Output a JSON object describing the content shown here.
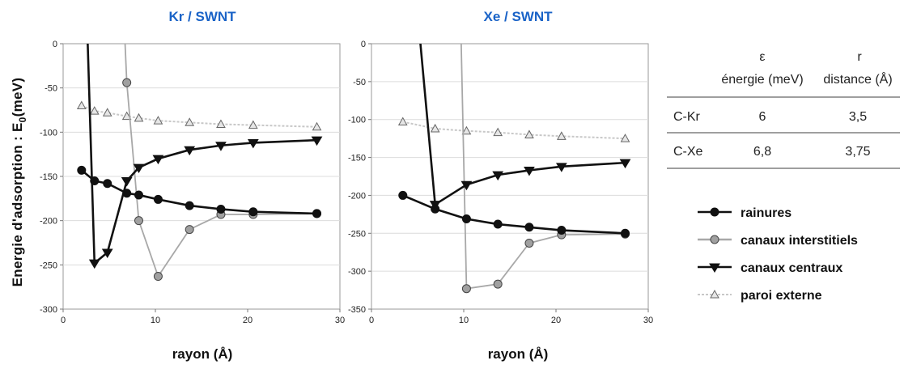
{
  "y_axis_label": "Energie d'adsorption : E",
  "y_axis_label_sub": "0",
  "y_axis_label_unit": "(meV)",
  "chart_data": [
    {
      "type": "line",
      "title": "Kr / SWNT",
      "xlabel": "rayon (Å)",
      "xlim": [
        0,
        30
      ],
      "ylim": [
        -300,
        0
      ],
      "xticks": [
        0,
        10,
        20,
        30
      ],
      "yticks": [
        0,
        -50,
        -100,
        -150,
        -200,
        -250,
        -300
      ],
      "series": [
        {
          "name": "rainures",
          "color": "#111111",
          "marker": "circle-filled",
          "line": "#111111",
          "x": [
            2.0,
            3.4,
            4.8,
            6.9,
            8.2,
            10.3,
            13.7,
            17.1,
            20.6,
            27.5
          ],
          "y": [
            -143,
            -155,
            -158,
            -169,
            -171,
            -176,
            -183,
            -187,
            -190,
            -192
          ]
        },
        {
          "name": "canaux interstitiels",
          "color": "#9a9a9a",
          "marker": "circle-gray",
          "line": "#a8a8a8",
          "x": [
            6.9,
            8.2,
            10.3,
            13.7,
            17.1,
            20.6,
            27.5
          ],
          "y": [
            -44,
            -200,
            -263,
            -210,
            -193,
            -193,
            -192
          ]
        },
        {
          "name": "canaux centraux",
          "color": "#111111",
          "marker": "triangle-down",
          "line": "#111111",
          "x": [
            3.4,
            4.8,
            6.9,
            8.2,
            10.3,
            13.7,
            17.1,
            20.6,
            27.5
          ],
          "y": [
            -248,
            -236,
            -155,
            -140,
            -130,
            -120,
            -115,
            -112,
            -109
          ]
        },
        {
          "name": "paroi externe",
          "color": "#888888",
          "marker": "triangle-up",
          "line": "#c8c8c8",
          "x": [
            2.0,
            3.4,
            4.8,
            6.9,
            8.2,
            10.3,
            13.7,
            17.1,
            20.6,
            27.5
          ],
          "y": [
            -70,
            -76,
            -78,
            -82,
            -84,
            -87,
            -89,
            -91,
            -92,
            -94
          ]
        }
      ]
    },
    {
      "type": "line",
      "title": "Xe / SWNT",
      "xlabel": "rayon (Å)",
      "xlim": [
        0,
        30
      ],
      "ylim": [
        -350,
        0
      ],
      "xticks": [
        0,
        10,
        20,
        30
      ],
      "yticks": [
        0,
        -50,
        -100,
        -150,
        -200,
        -250,
        -300,
        -350
      ],
      "series": [
        {
          "name": "rainures",
          "color": "#111111",
          "marker": "circle-filled",
          "line": "#111111",
          "x": [
            3.4,
            6.9,
            10.3,
            13.7,
            17.1,
            20.6,
            27.5
          ],
          "y": [
            -200,
            -218,
            -231,
            -238,
            -242,
            -246,
            -250
          ]
        },
        {
          "name": "canaux interstitiels",
          "color": "#9a9a9a",
          "marker": "circle-gray",
          "line": "#a8a8a8",
          "x": [
            10.3,
            13.7,
            17.1,
            20.6,
            27.5
          ],
          "y": [
            -323,
            -317,
            -263,
            -252,
            -251
          ]
        },
        {
          "name": "canaux centraux",
          "color": "#111111",
          "marker": "triangle-down",
          "line": "#111111",
          "x": [
            6.9,
            10.3,
            13.7,
            17.1,
            20.6,
            27.5
          ],
          "y": [
            -212,
            -186,
            -173,
            -167,
            -162,
            -157
          ]
        },
        {
          "name": "paroi externe",
          "color": "#888888",
          "marker": "triangle-up",
          "line": "#c8c8c8",
          "x": [
            3.4,
            6.9,
            10.3,
            13.7,
            17.1,
            20.6,
            27.5
          ],
          "y": [
            -103,
            -112,
            -115,
            -117,
            -120,
            -122,
            -125
          ]
        }
      ]
    },
    {
      "type": "table",
      "columns": [
        {
          "symbol": "ε",
          "label": "énergie (meV)"
        },
        {
          "symbol": "r",
          "label": "distance (Å)"
        }
      ],
      "rows": [
        {
          "label": "C-Kr",
          "values": [
            "6",
            "3,5"
          ]
        },
        {
          "label": "C-Xe",
          "values": [
            "6,8",
            "3,75"
          ]
        }
      ]
    }
  ],
  "legend": [
    {
      "label": "rainures",
      "marker": "circle-filled",
      "line": "#111111"
    },
    {
      "label": "canaux interstitiels",
      "marker": "circle-gray",
      "line": "#a8a8a8"
    },
    {
      "label": "canaux centraux",
      "marker": "triangle-down",
      "line": "#111111"
    },
    {
      "label": "paroi externe",
      "marker": "triangle-up",
      "line": "#c8c8c8"
    }
  ]
}
